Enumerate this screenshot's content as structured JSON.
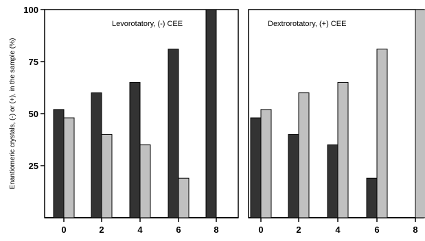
{
  "chart_data": [
    {
      "type": "bar",
      "title": "Levorotatory, (-) CEE",
      "ylabel": "Enantiomeric crystals, (-) or (+), in the sample (%)",
      "xlabel": "",
      "categories": [
        "0",
        "2",
        "4",
        "6",
        "8"
      ],
      "series": [
        {
          "values": [
            52,
            60,
            65,
            81,
            100
          ],
          "color": "#333333"
        },
        {
          "values": [
            48,
            40,
            35,
            19,
            0
          ],
          "color": "#c0c0c0"
        }
      ],
      "ylim": [
        0,
        100
      ],
      "yticks": [
        25,
        50,
        75,
        100
      ],
      "grid": false,
      "legend": "none"
    },
    {
      "type": "bar",
      "title": "Dextrorotatory, (+) CEE",
      "xlabel": "",
      "categories": [
        "0",
        "2",
        "4",
        "6",
        "8"
      ],
      "series": [
        {
          "values": [
            48,
            40,
            35,
            19,
            0
          ],
          "color": "#333333"
        },
        {
          "values": [
            52,
            60,
            65,
            81,
            100
          ],
          "color": "#c0c0c0"
        }
      ],
      "ylim": [
        0,
        100
      ],
      "grid": false,
      "legend": "none"
    }
  ]
}
